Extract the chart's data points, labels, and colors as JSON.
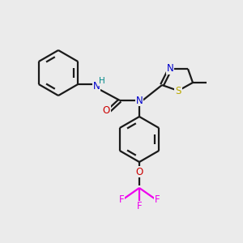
{
  "background_color": "#ebebeb",
  "bond_color": "#1a1a1a",
  "colors": {
    "N": "#0000cc",
    "O": "#cc0000",
    "S": "#bbaa00",
    "F": "#ee00ee",
    "H_label": "#008888",
    "C": "#1a1a1a"
  },
  "figsize": [
    3.0,
    3.0
  ],
  "dpi": 100
}
